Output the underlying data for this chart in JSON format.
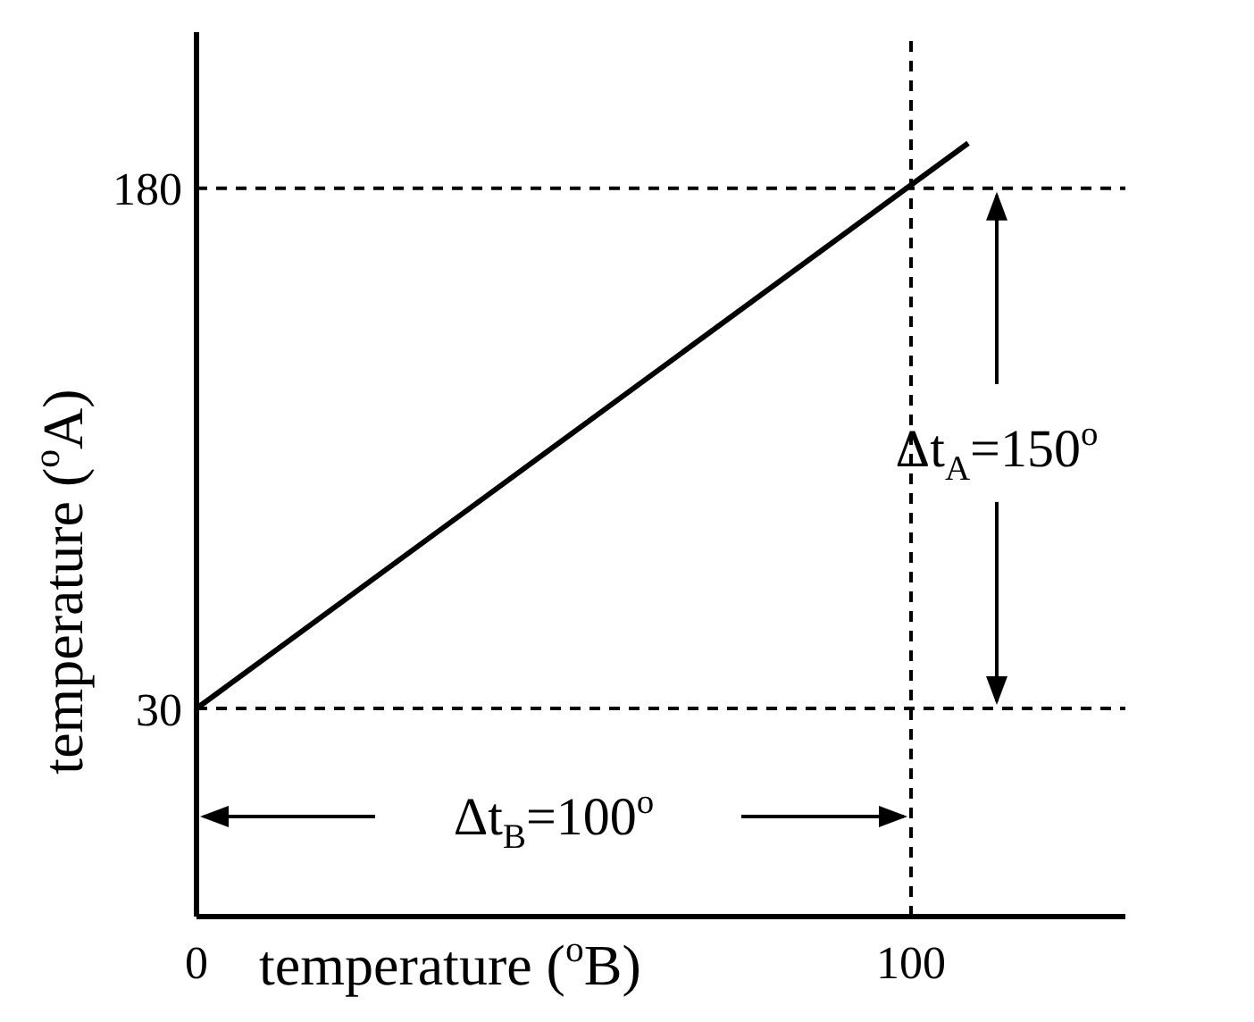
{
  "chart_data": {
    "type": "line",
    "xlabel": "temperature ($^{o}$B)",
    "ylabel": "temperature ($^{o}$A)",
    "xlim": [
      0,
      130
    ],
    "ylim": [
      -30,
      225
    ],
    "xticks": [
      0,
      100
    ],
    "yticks": [
      30,
      180
    ],
    "series": [
      {
        "color": "#000000",
        "x": [
          0,
          108
        ],
        "values": [
          30,
          193
        ]
      }
    ],
    "ref_lines": [
      {
        "axis": "y",
        "value": 180,
        "line_style": "dashed",
        "color": "#000000"
      },
      {
        "axis": "y",
        "value": 30,
        "line_style": "dashed",
        "color": "#000000"
      },
      {
        "axis": "x",
        "value": 100,
        "line_style": "dashed",
        "color": "#000000"
      }
    ],
    "annotations": [
      {
        "text": "Δt$_{A}$=150$^{o}$",
        "x": 112,
        "y": 180
      },
      "Δt$_{B}$=100$^{o}$"
    ],
    "grid": false,
    "marker": "none",
    "line_style": "solid"
  }
}
